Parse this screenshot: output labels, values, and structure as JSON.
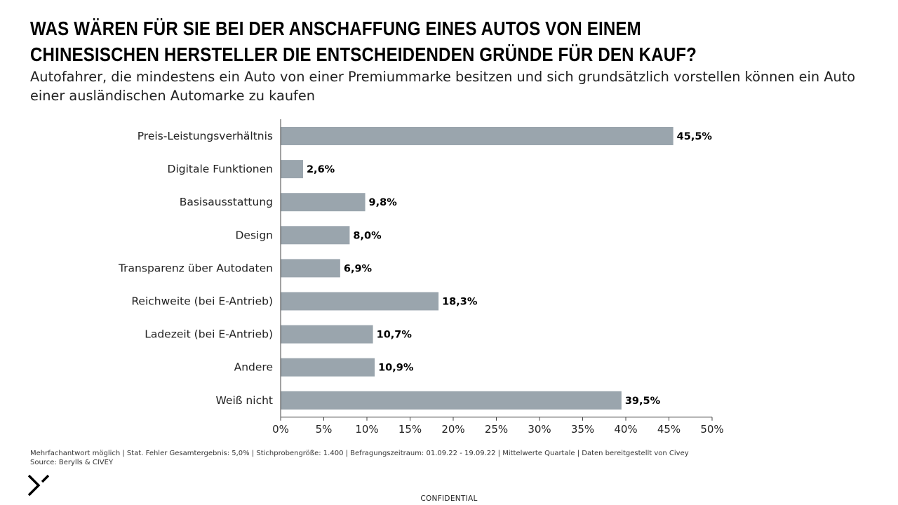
{
  "header": {
    "title": "WAS WÄREN FÜR SIE BEI DER ANSCHAFFUNG EINES AUTOS VON EINEM CHINESISCHEN HERSTELLER DIE ENTSCHEIDENDEN GRÜNDE FÜR DEN KAUF?",
    "subtitle": "Autofahrer, die mindestens ein Auto von einer Premiummarke besitzen und sich grundsätzlich vorstellen können ein Auto einer ausländischen Automarke zu kaufen"
  },
  "chart_data": {
    "type": "bar",
    "orientation": "horizontal",
    "categories": [
      "Preis-Leistungsverhältnis",
      "Digitale Funktionen",
      "Basisausstattung",
      "Design",
      "Transparenz über Autodaten",
      "Reichweite (bei E-Antrieb)",
      "Ladezeit (bei E-Antrieb)",
      "Andere",
      "Weiß nicht"
    ],
    "values": [
      45.5,
      2.6,
      9.8,
      8.0,
      6.9,
      18.3,
      10.7,
      10.9,
      39.5
    ],
    "value_labels": [
      "45,5%",
      "2,6%",
      "9,8%",
      "8,0%",
      "6,9%",
      "18,3%",
      "10,7%",
      "10,9%",
      "39,5%"
    ],
    "xlim": [
      0,
      50
    ],
    "x_ticks": [
      0,
      5,
      10,
      15,
      20,
      25,
      30,
      35,
      40,
      45,
      50
    ],
    "x_tick_labels": [
      "0%",
      "5%",
      "10%",
      "15%",
      "20%",
      "25%",
      "30%",
      "35%",
      "40%",
      "45%",
      "50%"
    ],
    "grid": false,
    "bar_color": "#9aa5ad"
  },
  "footer": {
    "note": "Mehrfachantwort möglich | Stat. Fehler Gesamtergebnis: 5,0% | Stichprobengröße: 1.400 | Befragungszeitraum: 01.09.22 - 19.09.22 | Mittelwerte Quartale | Daten bereitgestellt von Civey",
    "source": "Source: Berylls & CIVEY",
    "confidential": "CONFIDENTIAL"
  },
  "logo": {
    "icon": "berylls-chevron-icon"
  }
}
